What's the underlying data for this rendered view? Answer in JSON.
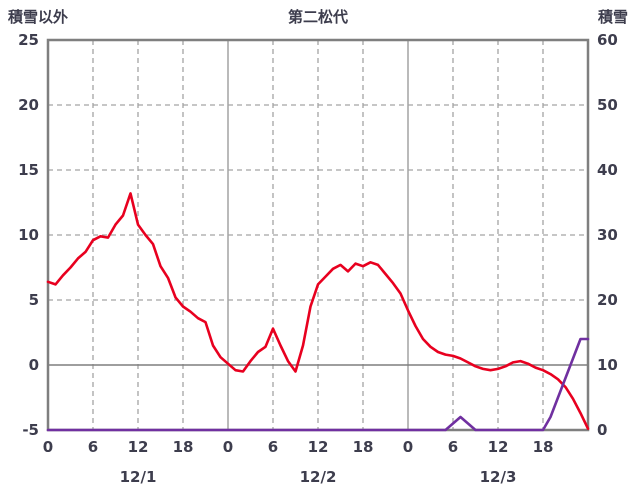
{
  "header": {
    "left_axis_title": "積雪以外",
    "chart_title": "第二松代",
    "right_axis_title": "積雪"
  },
  "colors": {
    "grid": "#a3a3a3",
    "border": "#7f7f7f",
    "zero": "#7f7f7f",
    "red_series": "#e8001f",
    "purple_series": "#7030a0",
    "text": "#3d3d4d"
  },
  "chart_data": {
    "type": "line",
    "title": "第二松代",
    "x_unit": "hour",
    "x_range": [
      0,
      72
    ],
    "left_axis": {
      "title": "積雪以外",
      "min": -5,
      "max": 25,
      "ticks": [
        25,
        20,
        15,
        10,
        5,
        0,
        -5
      ]
    },
    "right_axis": {
      "title": "積雪",
      "min": 0,
      "max": 60,
      "ticks": [
        60,
        50,
        40,
        30,
        20,
        10,
        0
      ]
    },
    "x_axis": {
      "tick_hours": [
        0,
        6,
        12,
        18,
        24,
        30,
        36,
        42,
        48,
        54,
        60,
        66
      ],
      "tick_labels": [
        "0",
        "6",
        "12",
        "18",
        "0",
        "6",
        "12",
        "18",
        "0",
        "6",
        "12",
        "18"
      ],
      "day_labels": [
        "12/1",
        "12/2",
        "12/3"
      ],
      "day_label_hours": [
        12,
        36,
        60
      ]
    },
    "grid": {
      "solid_vlines_hours": [
        24,
        48
      ],
      "dashed_vlines_hours": [
        6,
        12,
        18,
        30,
        36,
        42,
        54,
        60,
        66
      ],
      "dashed_hlines_left": [
        20,
        15,
        10,
        5
      ],
      "zero_line_left": 0
    },
    "series": [
      {
        "name": "積雪以外",
        "axis": "left",
        "color": "#e8001f",
        "values": [
          6.4,
          6.2,
          6.9,
          7.5,
          8.2,
          8.7,
          9.6,
          9.9,
          9.8,
          10.8,
          11.5,
          13.2,
          10.8,
          10.0,
          9.3,
          7.6,
          6.7,
          5.2,
          4.5,
          4.1,
          3.6,
          3.3,
          1.5,
          0.6,
          0.1,
          -0.4,
          -0.5,
          0.3,
          1.0,
          1.4,
          2.8,
          1.5,
          0.3,
          -0.5,
          1.5,
          4.5,
          6.2,
          6.8,
          7.4,
          7.7,
          7.2,
          7.8,
          7.6,
          7.9,
          7.7,
          7.0,
          6.3,
          5.5,
          4.2,
          3.0,
          2.0,
          1.4,
          1.0,
          0.8,
          0.7,
          0.5,
          0.2,
          -0.1,
          -0.3,
          -0.4,
          -0.3,
          -0.1,
          0.2,
          0.3,
          0.1,
          -0.2,
          -0.4,
          -0.7,
          -1.1,
          -1.7,
          -2.6,
          -3.7,
          -4.9
        ]
      },
      {
        "name": "積雪",
        "axis": "right",
        "color": "#7030a0",
        "values": [
          0,
          0,
          0,
          0,
          0,
          0,
          0,
          0,
          0,
          0,
          0,
          0,
          0,
          0,
          0,
          0,
          0,
          0,
          0,
          0,
          0,
          0,
          0,
          0,
          0,
          0,
          0,
          0,
          0,
          0,
          0,
          0,
          0,
          0,
          0,
          0,
          0,
          0,
          0,
          0,
          0,
          0,
          0,
          0,
          0,
          0,
          0,
          0,
          0,
          0,
          0,
          0,
          0,
          0,
          1,
          2,
          1,
          0,
          0,
          0,
          0,
          0,
          0,
          0,
          0,
          0,
          0,
          2,
          5,
          8,
          11,
          14,
          14
        ]
      }
    ]
  }
}
